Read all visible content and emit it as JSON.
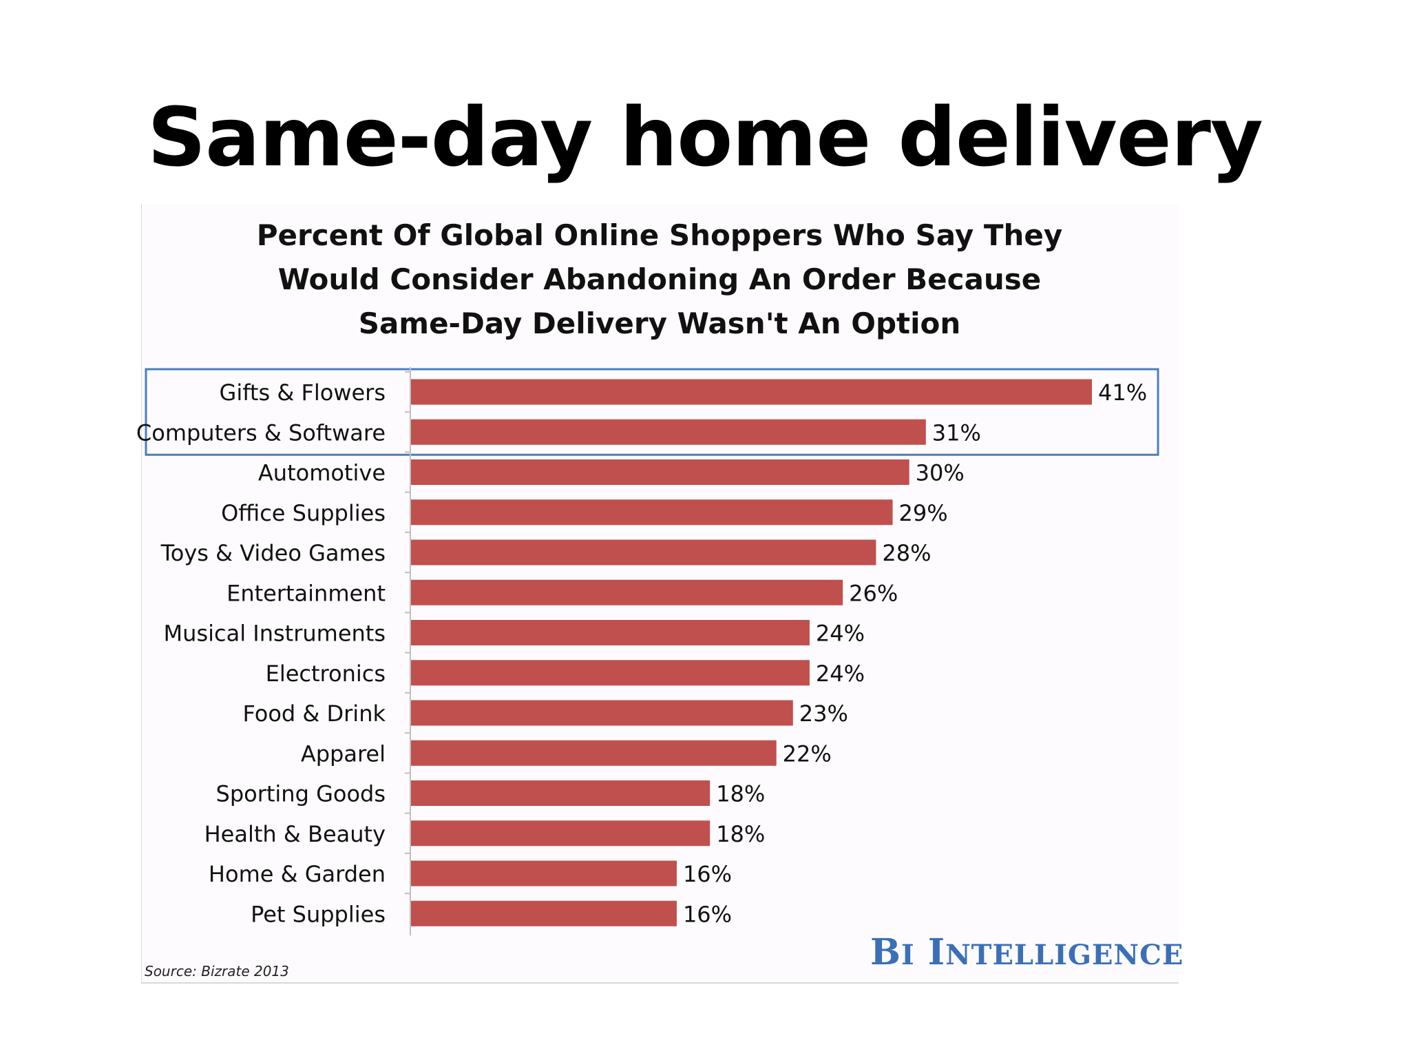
{
  "slide": {
    "title": "Same-day home delivery"
  },
  "chart_data": {
    "type": "bar",
    "orientation": "horizontal",
    "title_lines": [
      "Percent Of Global Online Shoppers Who Say They",
      "Would Consider Abandoning An Order Because",
      "Same-Day Delivery Wasn't An Option"
    ],
    "categories": [
      "Gifts & Flowers",
      "Computers & Software",
      "Automotive",
      "Office Supplies",
      "Toys & Video Games",
      "Entertainment",
      "Musical Instruments",
      "Electronics",
      "Food & Drink",
      "Apparel",
      "Sporting Goods",
      "Health & Beauty",
      "Home & Garden",
      "Pet Supplies"
    ],
    "values": [
      41,
      31,
      30,
      29,
      28,
      26,
      24,
      24,
      23,
      22,
      18,
      18,
      16,
      16
    ],
    "value_labels": [
      "41%",
      "31%",
      "30%",
      "29%",
      "28%",
      "26%",
      "24%",
      "24%",
      "23%",
      "22%",
      "18%",
      "18%",
      "16%",
      "16%"
    ],
    "xlim": [
      0,
      41
    ],
    "grid": false,
    "bar_color": "#c0504d",
    "highlight": {
      "categories": [
        "Gifts & Flowers",
        "Computers & Software"
      ],
      "color": "#4a7ebb"
    },
    "source": "Source: Bizrate 2013"
  },
  "branding": {
    "logo_text": "BI Intelligence",
    "color": "#3b6fb6"
  }
}
